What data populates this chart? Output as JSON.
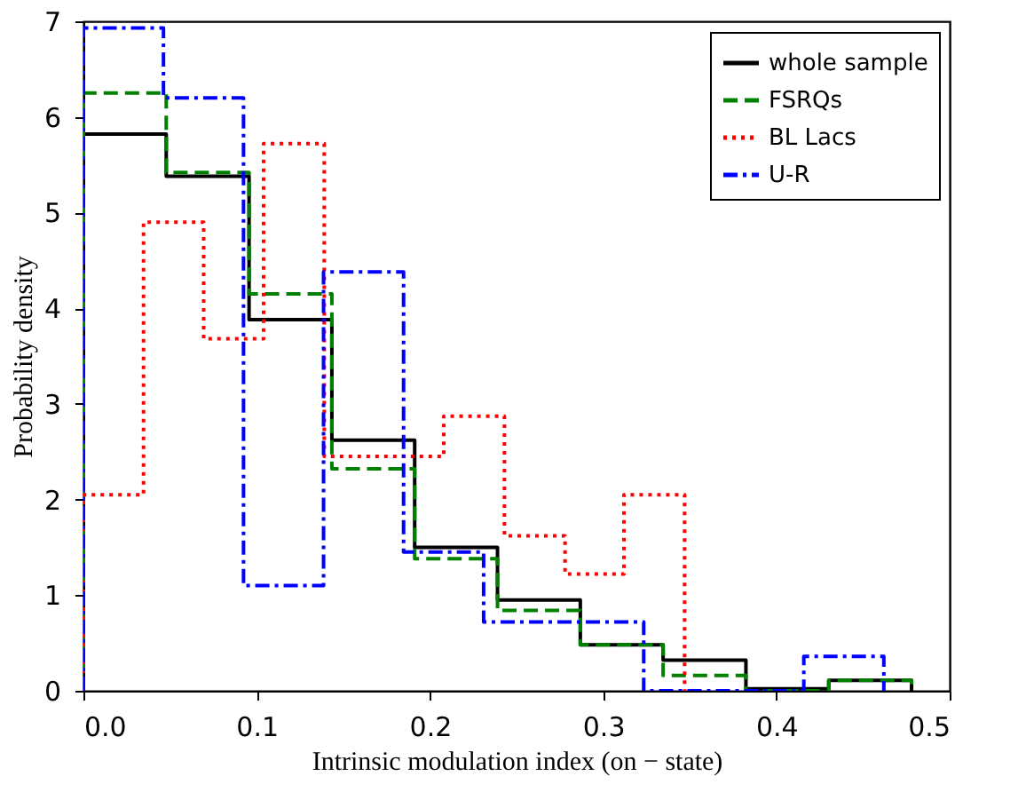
{
  "chart_data": {
    "type": "step",
    "xlabel": "Intrinsic modulation index (on − state)",
    "ylabel": "Probability density",
    "xlim": [
      0,
      0.5
    ],
    "ylim": [
      0,
      7
    ],
    "xticks": [
      {
        "value": 0,
        "label": "0.0"
      },
      0.1,
      0.2,
      0.3,
      0.4,
      0.5
    ],
    "yticks": [
      0,
      1,
      2,
      3,
      4,
      5,
      6,
      7
    ],
    "legend": "top right",
    "series": [
      {
        "name": "whole sample",
        "color": "#000000",
        "line_style": "solid",
        "x": [
          0,
          0,
          0.0478,
          0.0956,
          0.1434,
          0.1912,
          0.239,
          0.2868,
          0.3346,
          0.3824,
          0.4302,
          0.478,
          0.478
        ],
        "values": [
          0,
          5.82,
          5.38,
          3.88,
          2.62,
          1.5,
          0.95,
          0.48,
          0.32,
          0.02,
          0.11,
          0.11,
          0
        ]
      },
      {
        "name": "FSRQs",
        "color": "#008000",
        "line_style": "dashed",
        "x": [
          0,
          0,
          0.0478,
          0.0956,
          0.1434,
          0.1912,
          0.239,
          0.2868,
          0.3346,
          0.3824,
          0.4302,
          0.478,
          0.478
        ],
        "values": [
          0,
          6.25,
          5.42,
          4.15,
          2.32,
          1.38,
          0.84,
          0.48,
          0.16,
          0.0,
          0.11,
          0.11,
          0
        ]
      },
      {
        "name": "BL Lacs",
        "color": "#ff0000",
        "line_style": "dotted",
        "x": [
          0,
          0,
          0.0347,
          0.0694,
          0.104,
          0.139,
          0.1735,
          0.208,
          0.243,
          0.278,
          0.312,
          0.347,
          0.347
        ],
        "values": [
          0,
          2.05,
          4.9,
          3.68,
          5.72,
          2.45,
          2.45,
          2.87,
          1.62,
          1.22,
          2.05,
          2.05,
          0
        ]
      },
      {
        "name": "U-R",
        "color": "#0000ff",
        "line_style": "dashdot",
        "x": [
          0,
          0,
          0.0462,
          0.0924,
          0.1386,
          0.1848,
          0.231,
          0.2772,
          0.3234,
          0.3696,
          0.4158,
          0.462,
          0.462
        ],
        "values": [
          0,
          6.93,
          6.2,
          1.1,
          4.38,
          1.45,
          0.72,
          0.72,
          0.0,
          0.0,
          0.36,
          0.36,
          0
        ]
      }
    ]
  }
}
